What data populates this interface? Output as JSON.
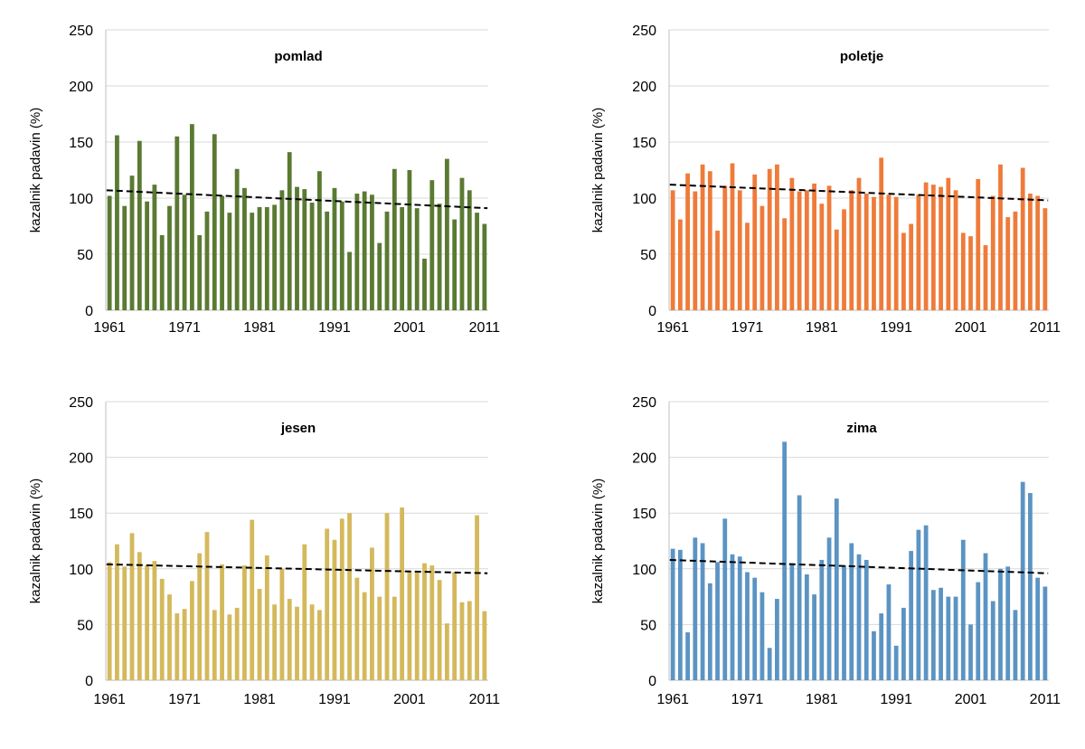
{
  "y_axis_label": "kazalnik padavin (%)",
  "chart_data": [
    {
      "type": "bar",
      "title": "pomlad",
      "color": "#5a7a32",
      "ylabel": "kazalnik padavin (%)",
      "ylim": [
        0,
        250
      ],
      "yticks": [
        "0",
        "50",
        "100",
        "150",
        "200",
        "250"
      ],
      "xticks": [
        "1961",
        "1971",
        "1981",
        "1991",
        "2001",
        "2011"
      ],
      "grid": true,
      "x": [
        1961,
        1962,
        1963,
        1964,
        1965,
        1966,
        1967,
        1968,
        1969,
        1970,
        1971,
        1972,
        1973,
        1974,
        1975,
        1976,
        1977,
        1978,
        1979,
        1980,
        1981,
        1982,
        1983,
        1984,
        1985,
        1986,
        1987,
        1988,
        1989,
        1990,
        1991,
        1992,
        1993,
        1994,
        1995,
        1996,
        1997,
        1998,
        1999,
        2000,
        2001,
        2002,
        2003,
        2004,
        2005,
        2006,
        2007,
        2008,
        2009,
        2010,
        2011
      ],
      "values": [
        102,
        156,
        93,
        120,
        151,
        97,
        112,
        67,
        93,
        155,
        103,
        166,
        67,
        88,
        157,
        102,
        87,
        126,
        109,
        87,
        92,
        92,
        94,
        107,
        141,
        110,
        108,
        96,
        124,
        88,
        109,
        97,
        52,
        104,
        106,
        103,
        60,
        88,
        126,
        92,
        125,
        91,
        46,
        116,
        95,
        135,
        81,
        118,
        107,
        87,
        77
      ],
      "trend": [
        107,
        91
      ]
    },
    {
      "type": "bar",
      "title": "poletje",
      "color": "#ee7b3a",
      "ylabel": "kazalnik padavin (%)",
      "ylim": [
        0,
        250
      ],
      "yticks": [
        "0",
        "50",
        "100",
        "150",
        "200",
        "250"
      ],
      "xticks": [
        "1961",
        "1971",
        "1981",
        "1991",
        "2001",
        "2011"
      ],
      "grid": true,
      "x": [
        1961,
        1962,
        1963,
        1964,
        1965,
        1966,
        1967,
        1968,
        1969,
        1970,
        1971,
        1972,
        1973,
        1974,
        1975,
        1976,
        1977,
        1978,
        1979,
        1980,
        1981,
        1982,
        1983,
        1984,
        1985,
        1986,
        1987,
        1988,
        1989,
        1990,
        1991,
        1992,
        1993,
        1994,
        1995,
        1996,
        1997,
        1998,
        1999,
        2000,
        2001,
        2002,
        2003,
        2004,
        2005,
        2006,
        2007,
        2008,
        2009,
        2010,
        2011
      ],
      "values": [
        107,
        81,
        122,
        106,
        130,
        124,
        71,
        111,
        131,
        107,
        78,
        121,
        93,
        126,
        130,
        82,
        118,
        106,
        107,
        113,
        95,
        111,
        72,
        90,
        107,
        118,
        104,
        101,
        136,
        103,
        101,
        69,
        77,
        103,
        114,
        112,
        110,
        118,
        107,
        69,
        66,
        117,
        58,
        102,
        130,
        83,
        88,
        127,
        104,
        102,
        91
      ],
      "trend": [
        112,
        98
      ]
    },
    {
      "type": "bar",
      "title": "jesen",
      "color": "#d4b95c",
      "ylabel": "kazalnik padavin (%)",
      "ylim": [
        0,
        250
      ],
      "yticks": [
        "0",
        "50",
        "100",
        "150",
        "200",
        "250"
      ],
      "xticks": [
        "1961",
        "1971",
        "1981",
        "1991",
        "2001",
        "2011"
      ],
      "grid": true,
      "x": [
        1961,
        1962,
        1963,
        1964,
        1965,
        1966,
        1967,
        1968,
        1969,
        1970,
        1971,
        1972,
        1973,
        1974,
        1975,
        1976,
        1977,
        1978,
        1979,
        1980,
        1981,
        1982,
        1983,
        1984,
        1985,
        1986,
        1987,
        1988,
        1989,
        1990,
        1991,
        1992,
        1993,
        1994,
        1995,
        1996,
        1997,
        1998,
        1999,
        2000,
        2001,
        2002,
        2003,
        2004,
        2005,
        2006,
        2007,
        2008,
        2009,
        2010,
        2011
      ],
      "values": [
        106,
        122,
        102,
        132,
        115,
        103,
        107,
        91,
        77,
        60,
        64,
        89,
        114,
        133,
        63,
        104,
        59,
        65,
        103,
        144,
        82,
        112,
        68,
        100,
        73,
        66,
        122,
        68,
        63,
        136,
        126,
        145,
        150,
        92,
        79,
        119,
        75,
        150,
        75,
        155,
        97,
        98,
        105,
        103,
        90,
        51,
        97,
        70,
        71,
        148,
        62
      ],
      "trend": [
        104,
        96
      ]
    },
    {
      "type": "bar",
      "title": "zima",
      "color": "#5b94c3",
      "ylabel": "kazalnik padavin (%)",
      "ylim": [
        0,
        250
      ],
      "yticks": [
        "0",
        "50",
        "100",
        "150",
        "200",
        "250"
      ],
      "xticks": [
        "1961",
        "1971",
        "1981",
        "1991",
        "2001",
        "2011"
      ],
      "grid": true,
      "x": [
        1961,
        1962,
        1963,
        1964,
        1965,
        1966,
        1967,
        1968,
        1969,
        1970,
        1971,
        1972,
        1973,
        1974,
        1975,
        1976,
        1977,
        1978,
        1979,
        1980,
        1981,
        1982,
        1983,
        1984,
        1985,
        1986,
        1987,
        1988,
        1989,
        1990,
        1991,
        1992,
        1993,
        1994,
        1995,
        1996,
        1997,
        1998,
        1999,
        2000,
        2001,
        2002,
        2003,
        2004,
        2005,
        2006,
        2007,
        2008,
        2009,
        2010,
        2011
      ],
      "values": [
        118,
        117,
        43,
        128,
        123,
        87,
        106,
        145,
        113,
        111,
        97,
        92,
        79,
        29,
        73,
        214,
        105,
        166,
        95,
        77,
        108,
        128,
        163,
        103,
        123,
        113,
        108,
        44,
        60,
        86,
        31,
        65,
        116,
        135,
        139,
        81,
        83,
        75,
        75,
        126,
        50,
        88,
        114,
        71,
        100,
        102,
        63,
        178,
        168,
        92,
        84
      ],
      "trend": [
        108,
        96
      ]
    }
  ]
}
